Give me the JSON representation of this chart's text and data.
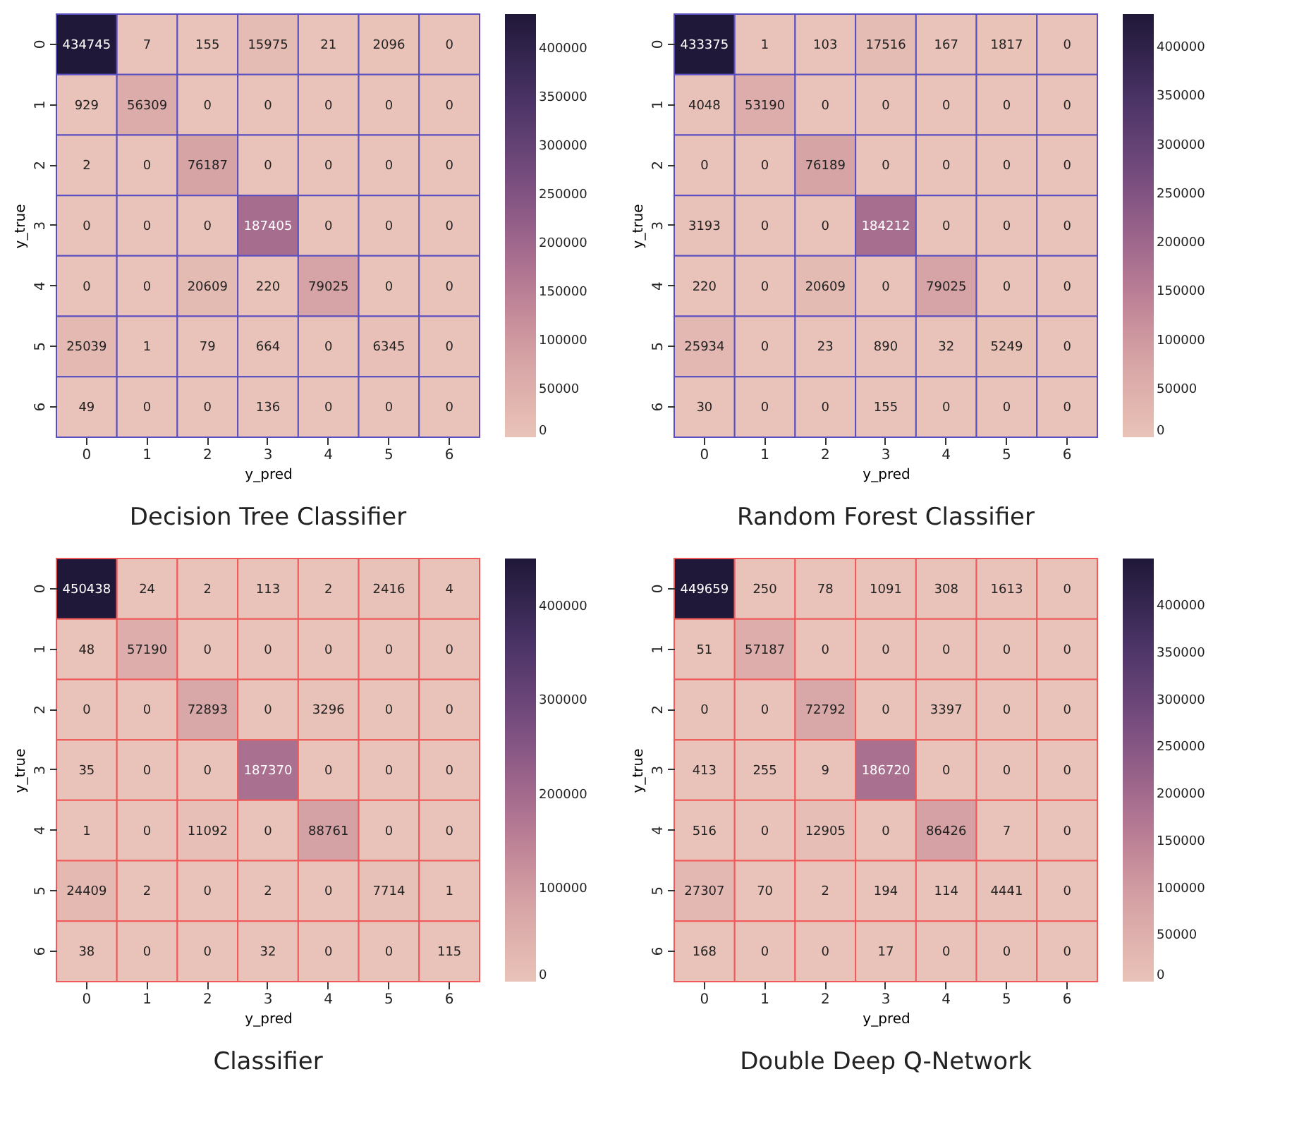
{
  "chart_data": [
    {
      "type": "heatmap",
      "title": "Decision Tree Classifier",
      "xlabel": "y_pred",
      "ylabel": "y_true",
      "categories": [
        "0",
        "1",
        "2",
        "3",
        "4",
        "5",
        "6"
      ],
      "y_categories": [
        "0",
        "1",
        "2",
        "3",
        "4",
        "5",
        "6"
      ],
      "cells": [
        [
          434745,
          7,
          155,
          15975,
          21,
          2096,
          0
        ],
        [
          929,
          56309,
          0,
          0,
          0,
          0,
          0
        ],
        [
          2,
          0,
          76187,
          0,
          0,
          0,
          0
        ],
        [
          0,
          0,
          0,
          187405,
          0,
          0,
          0
        ],
        [
          0,
          0,
          20609,
          220,
          79025,
          0,
          0
        ],
        [
          25039,
          1,
          79,
          664,
          0,
          6345,
          0
        ],
        [
          49,
          0,
          0,
          136,
          0,
          0,
          0
        ]
      ],
      "clim": [
        0,
        434745
      ],
      "cticks": [
        0,
        50000,
        100000,
        150000,
        200000,
        250000,
        300000,
        350000,
        400000
      ],
      "data_labels": true
    },
    {
      "type": "heatmap",
      "title": "Random Forest Classifier",
      "xlabel": "y_pred",
      "ylabel": "y_true",
      "categories": [
        "0",
        "1",
        "2",
        "3",
        "4",
        "5",
        "6"
      ],
      "y_categories": [
        "0",
        "1",
        "2",
        "3",
        "4",
        "5",
        "6"
      ],
      "cells": [
        [
          433375,
          1,
          103,
          17516,
          167,
          1817,
          0
        ],
        [
          4048,
          53190,
          0,
          0,
          0,
          0,
          0
        ],
        [
          0,
          0,
          76189,
          0,
          0,
          0,
          0
        ],
        [
          3193,
          0,
          0,
          184212,
          0,
          0,
          0
        ],
        [
          220,
          0,
          20609,
          0,
          79025,
          0,
          0
        ],
        [
          25934,
          0,
          23,
          890,
          32,
          5249,
          0
        ],
        [
          30,
          0,
          0,
          155,
          0,
          0,
          0
        ]
      ],
      "clim": [
        0,
        433375
      ],
      "cticks": [
        0,
        50000,
        100000,
        150000,
        200000,
        250000,
        300000,
        350000,
        400000
      ],
      "data_labels": true
    },
    {
      "type": "heatmap",
      "title": "Classifier",
      "xlabel": "y_pred",
      "ylabel": "y_true",
      "categories": [
        "0",
        "1",
        "2",
        "3",
        "4",
        "5",
        "6"
      ],
      "y_categories": [
        "0",
        "1",
        "2",
        "3",
        "4",
        "5",
        "6"
      ],
      "cells": [
        [
          450438,
          24,
          2,
          113,
          2,
          2416,
          4
        ],
        [
          48,
          57190,
          0,
          0,
          0,
          0,
          0
        ],
        [
          0,
          0,
          72893,
          0,
          3296,
          0,
          0
        ],
        [
          35,
          0,
          0,
          187370,
          0,
          0,
          0
        ],
        [
          1,
          0,
          11092,
          0,
          88761,
          0,
          0
        ],
        [
          24409,
          2,
          0,
          2,
          0,
          7714,
          1
        ],
        [
          38,
          0,
          0,
          32,
          0,
          0,
          115
        ]
      ],
      "clim": [
        0,
        450438
      ],
      "cticks": [
        0,
        100000,
        200000,
        300000,
        400000
      ],
      "data_labels": true
    },
    {
      "type": "heatmap",
      "title": "Double Deep Q-Network",
      "xlabel": "y_pred",
      "ylabel": "y_true",
      "categories": [
        "0",
        "1",
        "2",
        "3",
        "4",
        "5",
        "6"
      ],
      "y_categories": [
        "0",
        "1",
        "2",
        "3",
        "4",
        "5",
        "6"
      ],
      "cells": [
        [
          449659,
          250,
          78,
          1091,
          308,
          1613,
          0
        ],
        [
          51,
          57187,
          0,
          0,
          0,
          0,
          0
        ],
        [
          0,
          0,
          72792,
          0,
          3397,
          0,
          0
        ],
        [
          413,
          255,
          9,
          186720,
          0,
          0,
          0
        ],
        [
          516,
          0,
          12905,
          0,
          86426,
          7,
          0
        ],
        [
          27307,
          70,
          2,
          194,
          114,
          4441,
          0
        ],
        [
          168,
          0,
          0,
          17,
          0,
          0,
          0
        ]
      ],
      "clim": [
        0,
        449659
      ],
      "cticks": [
        0,
        50000,
        100000,
        150000,
        200000,
        250000,
        300000,
        350000,
        400000
      ],
      "data_labels": true
    }
  ]
}
